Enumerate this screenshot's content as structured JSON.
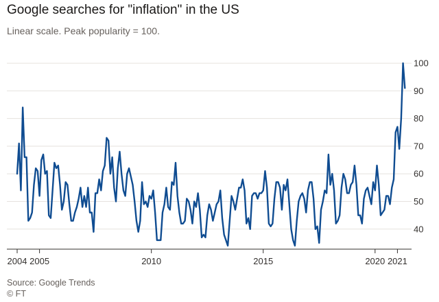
{
  "header": {
    "title": "Google searches for \"inflation\" in the US",
    "subtitle": "Linear scale. Peak popularity = 100."
  },
  "footer": {
    "source": "Source: Google Trends",
    "credit": "© FT"
  },
  "colors": {
    "line": "#0f4c91",
    "grid": "#e6e2de",
    "baseline": "#33302e",
    "text": "#33302e"
  },
  "chart_data": {
    "type": "line",
    "title": "Google searches for \"inflation\" in the US",
    "subtitle": "Linear scale. Peak popularity = 100.",
    "xlabel": "",
    "ylabel": "",
    "x_range": [
      "2004-01",
      "2021-06"
    ],
    "ylim": [
      33,
      103
    ],
    "y_ticks": [
      40,
      50,
      60,
      70,
      80,
      90,
      100
    ],
    "y_tick_labels": [
      "40",
      "50",
      "60",
      "70",
      "80",
      "90",
      "100"
    ],
    "y_axis_position": "right",
    "x_ticks": [
      "2004-01",
      "2005-01",
      "2010-01",
      "2015-01",
      "2020-01",
      "2021-01"
    ],
    "x_tick_labels": [
      "2004",
      "2005",
      "2010",
      "2015",
      "2020",
      "2021"
    ],
    "grid": "horizontal",
    "series": [
      {
        "x_start": "2004-01",
        "frequency": "monthly",
        "values": [
          60,
          71,
          54,
          84,
          66,
          66,
          43,
          44,
          46,
          56,
          62,
          61,
          52,
          65,
          67,
          60,
          61,
          45,
          44,
          54,
          64,
          62,
          63,
          56,
          47,
          50,
          57,
          56,
          49,
          43,
          43,
          46,
          48,
          51,
          55,
          48,
          52,
          48,
          55,
          46,
          46,
          39,
          53,
          53,
          58,
          54,
          61,
          63,
          73,
          72,
          60,
          66,
          55,
          50,
          62,
          68,
          60,
          54,
          52,
          60,
          62,
          59,
          56,
          50,
          43,
          39,
          43,
          57,
          49,
          50,
          48,
          52,
          51,
          54,
          46,
          36,
          36,
          36,
          46,
          49,
          55,
          48,
          47,
          57,
          56,
          64,
          52,
          46,
          42,
          42,
          43,
          51,
          50,
          47,
          42,
          50,
          48,
          53,
          47,
          37,
          38,
          37,
          45,
          49,
          47,
          43,
          46,
          49,
          50,
          54,
          44,
          38,
          36,
          34,
          43,
          52,
          50,
          47,
          51,
          55,
          55,
          58,
          54,
          42,
          44,
          40,
          52,
          53,
          53,
          51,
          53,
          53,
          54,
          61,
          55,
          42,
          41,
          42,
          51,
          57,
          57,
          55,
          47,
          56,
          54,
          58,
          49,
          40,
          36,
          34,
          43,
          50,
          52,
          53,
          51,
          46,
          54,
          57,
          57,
          51,
          40,
          41,
          35,
          47,
          50,
          54,
          53,
          67,
          56,
          60,
          54,
          42,
          43,
          45,
          55,
          60,
          58,
          53,
          53,
          56,
          57,
          63,
          56,
          45,
          45,
          42,
          51,
          54,
          55,
          52,
          49,
          57,
          54,
          63,
          56,
          45,
          46,
          47,
          52,
          52,
          49,
          55,
          58,
          75,
          77,
          69,
          80,
          100,
          91
        ]
      }
    ]
  }
}
